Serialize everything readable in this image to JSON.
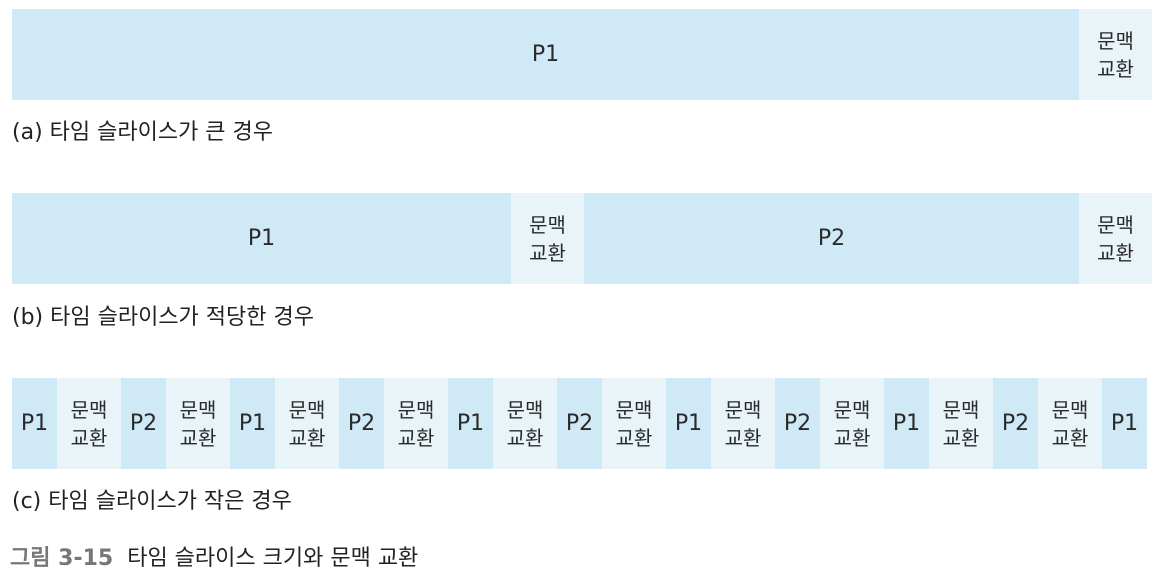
{
  "ctx_switch_label": [
    "문맥",
    "교환"
  ],
  "row_a": {
    "caption": "(a) 타임 슬라이스가 큰 경우",
    "segments": [
      {
        "kind": "process",
        "label": "P1"
      },
      {
        "kind": "switch"
      }
    ]
  },
  "row_b": {
    "caption": "(b) 타임 슬라이스가 적당한 경우",
    "segments": [
      {
        "kind": "process",
        "label": "P1"
      },
      {
        "kind": "switch"
      },
      {
        "kind": "process",
        "label": "P2"
      },
      {
        "kind": "switch"
      }
    ]
  },
  "row_c": {
    "caption": "(c) 타임 슬라이스가 작은 경우",
    "segments": [
      {
        "kind": "process",
        "label": "P1"
      },
      {
        "kind": "switch"
      },
      {
        "kind": "process",
        "label": "P2"
      },
      {
        "kind": "switch"
      },
      {
        "kind": "process",
        "label": "P1"
      },
      {
        "kind": "switch"
      },
      {
        "kind": "process",
        "label": "P2"
      },
      {
        "kind": "switch"
      },
      {
        "kind": "process",
        "label": "P1"
      },
      {
        "kind": "switch"
      },
      {
        "kind": "process",
        "label": "P2"
      },
      {
        "kind": "switch"
      },
      {
        "kind": "process",
        "label": "P1"
      },
      {
        "kind": "switch"
      },
      {
        "kind": "process",
        "label": "P2"
      },
      {
        "kind": "switch"
      },
      {
        "kind": "process",
        "label": "P1"
      },
      {
        "kind": "switch"
      },
      {
        "kind": "process",
        "label": "P2"
      },
      {
        "kind": "switch"
      },
      {
        "kind": "process",
        "label": "P1"
      }
    ]
  },
  "figure": {
    "number": "그림 3-15",
    "title": "타임 슬라이스 크기와 문맥 교환"
  },
  "colors": {
    "process_fill": "#d0e9f7",
    "switch_fill": "#e9f4f9"
  }
}
